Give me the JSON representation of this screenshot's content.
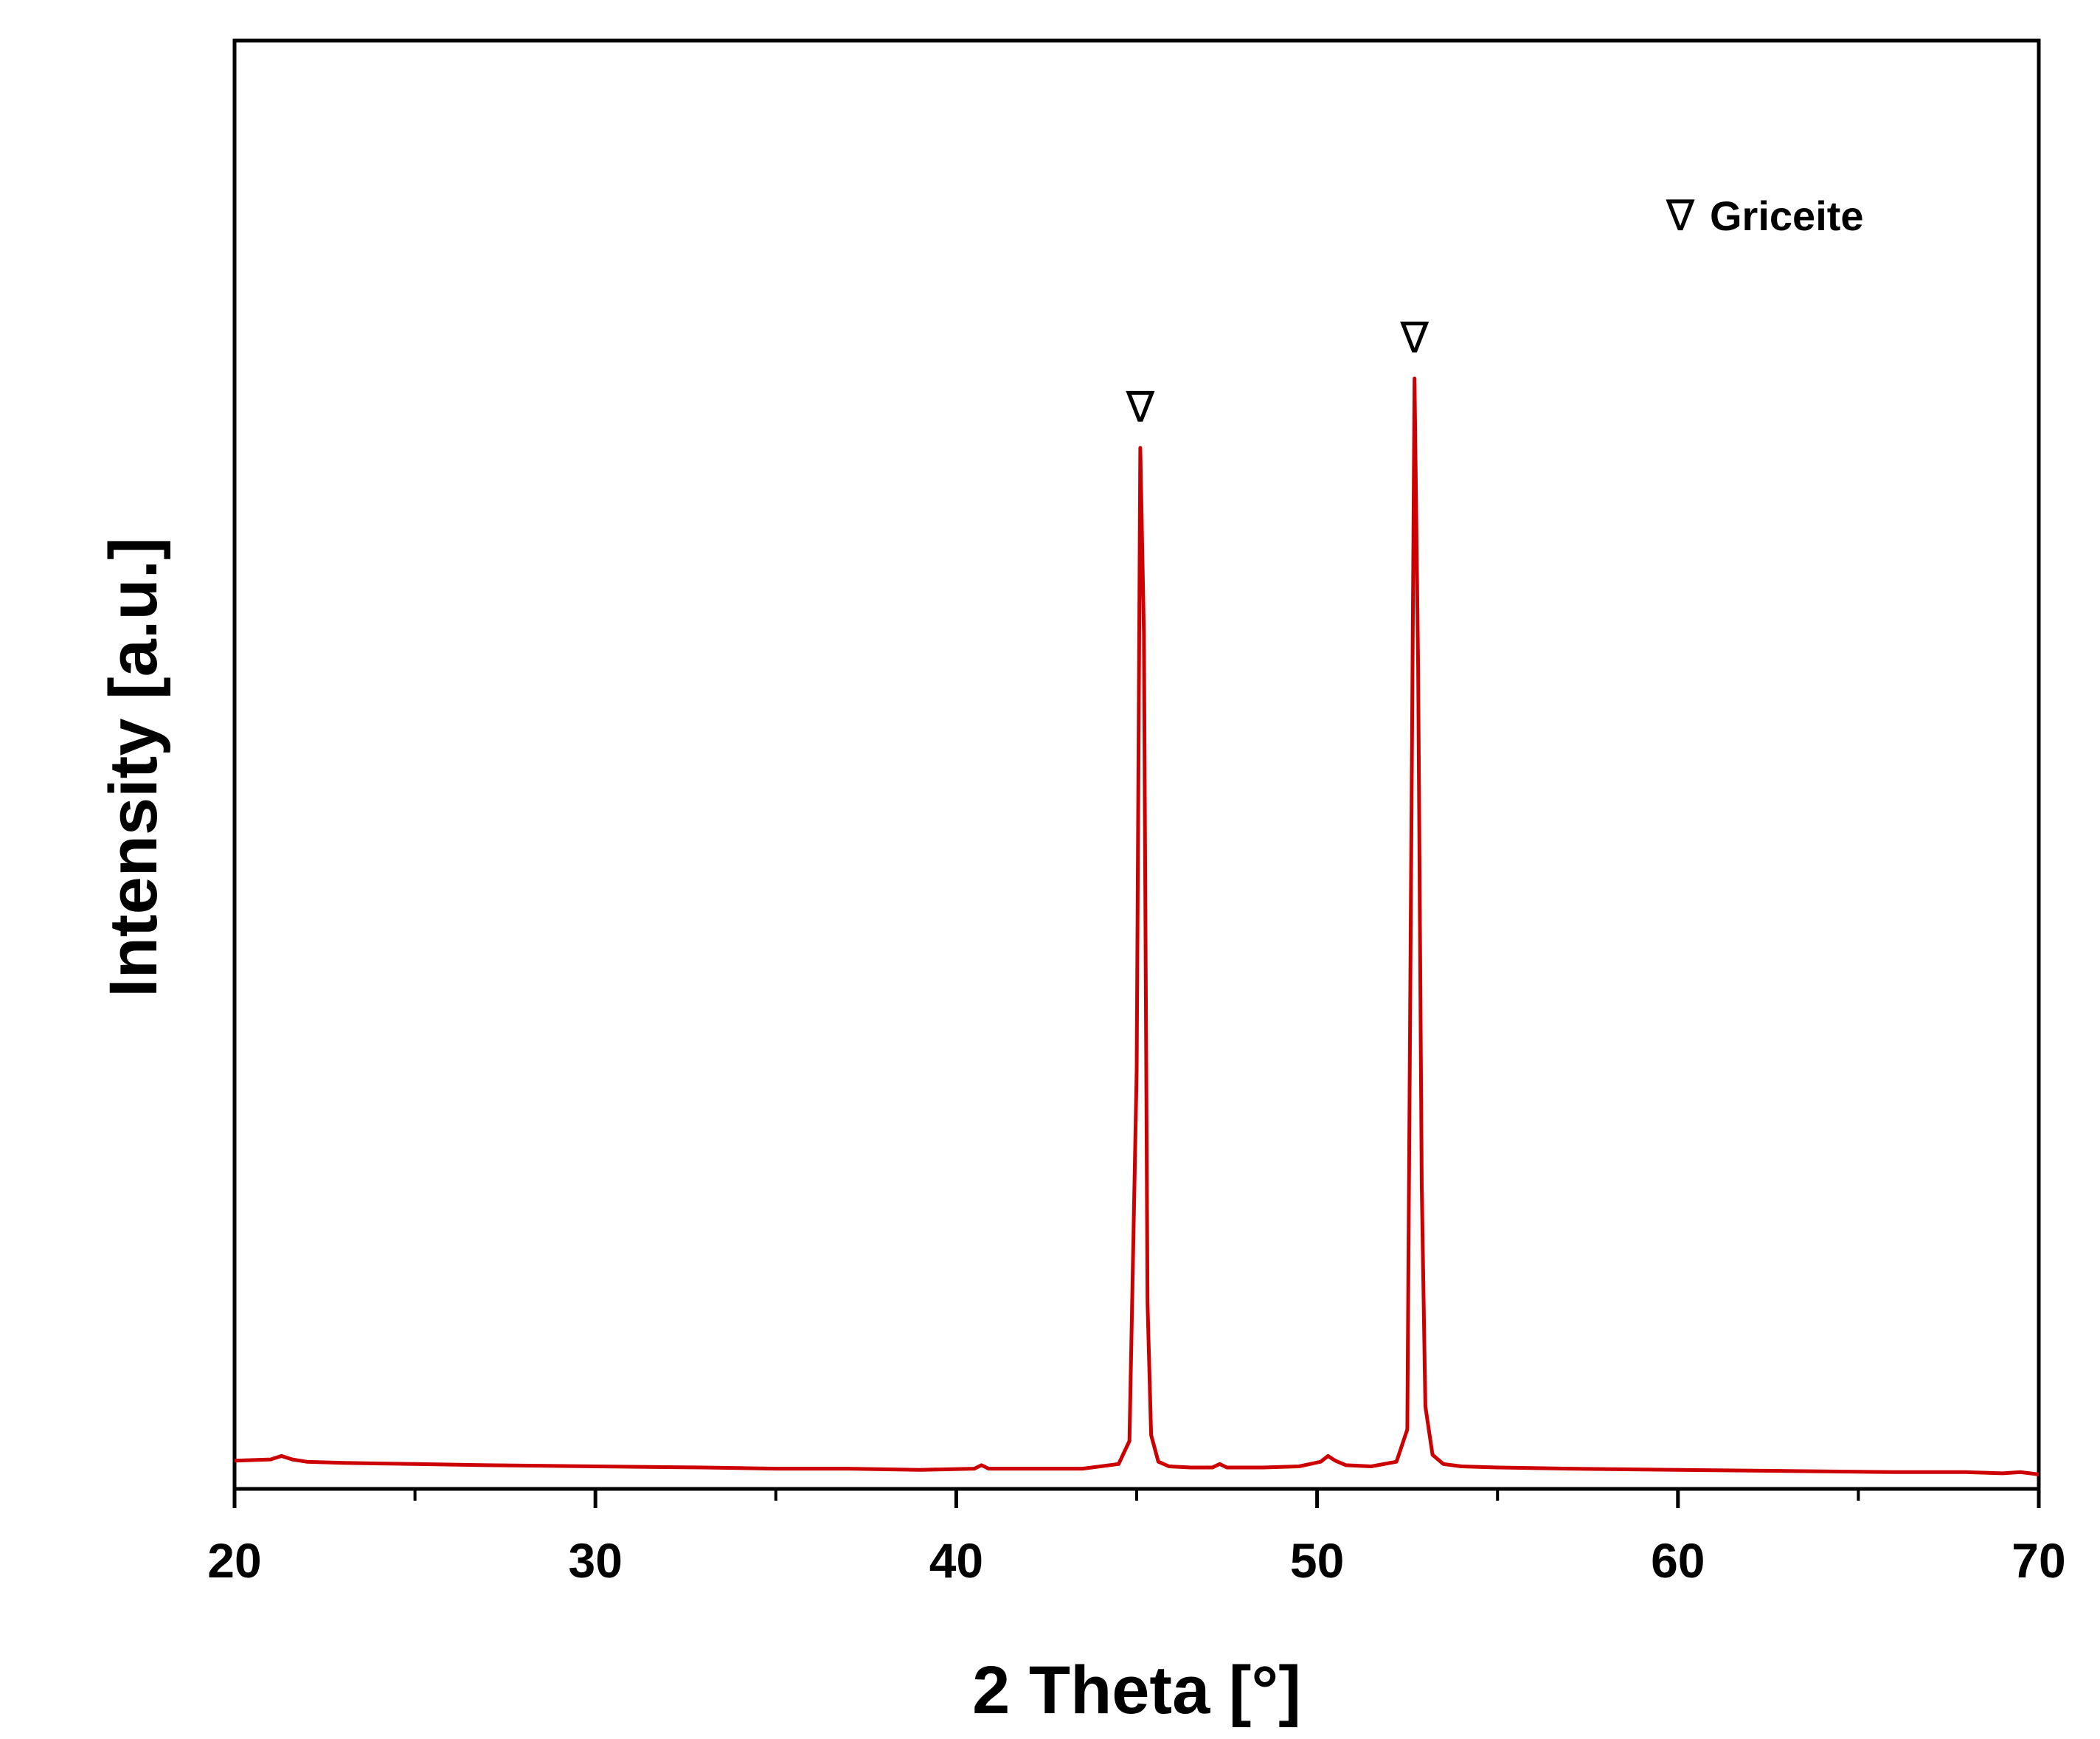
{
  "chart_data": {
    "type": "line",
    "xlabel": "2 Theta [°]",
    "ylabel": "Intensity [a.u.]",
    "xlim": [
      20,
      70
    ],
    "ylim": [
      0,
      1.15
    ],
    "xticks": [
      20,
      30,
      40,
      50,
      60,
      70
    ],
    "xticks_minor": [
      25,
      35,
      45,
      55,
      65
    ],
    "yticks": [],
    "grid": false,
    "series": [
      {
        "color": "#cc0000",
        "x": [
          20,
          21.0,
          21.3,
          21.6,
          22,
          23,
          25,
          27,
          30,
          33,
          35,
          37,
          39,
          40.5,
          40.7,
          40.9,
          42,
          43.5,
          44.5,
          44.8,
          45.0,
          45.1,
          45.2,
          45.3,
          45.4,
          45.6,
          45.9,
          46.5,
          47.1,
          47.3,
          47.5,
          48.5,
          49.5,
          50.1,
          50.3,
          50.5,
          50.8,
          51.5,
          52.2,
          52.5,
          52.6,
          52.7,
          52.8,
          52.9,
          53.0,
          53.2,
          53.5,
          54,
          55,
          57,
          60,
          63,
          66,
          68,
          69,
          69.5,
          70
        ],
        "y": [
          0.013,
          0.014,
          0.017,
          0.014,
          0.012,
          0.011,
          0.01,
          0.009,
          0.008,
          0.007,
          0.006,
          0.006,
          0.005,
          0.006,
          0.009,
          0.006,
          0.006,
          0.006,
          0.01,
          0.03,
          0.35,
          0.89,
          0.73,
          0.15,
          0.035,
          0.012,
          0.008,
          0.007,
          0.007,
          0.01,
          0.007,
          0.007,
          0.008,
          0.012,
          0.017,
          0.013,
          0.009,
          0.008,
          0.012,
          0.04,
          0.5,
          0.95,
          0.7,
          0.25,
          0.06,
          0.018,
          0.01,
          0.008,
          0.007,
          0.006,
          0.005,
          0.004,
          0.003,
          0.003,
          0.002,
          0.003,
          0.001
        ]
      }
    ],
    "annotations": [
      {
        "text": "∇",
        "x": 45.1,
        "y": 0.9
      },
      {
        "text": "∇",
        "x": 52.7,
        "y": 0.96
      }
    ],
    "legend": {
      "position": "top-right",
      "entries": [
        {
          "marker": "∇",
          "name": "Griceite"
        }
      ]
    }
  }
}
